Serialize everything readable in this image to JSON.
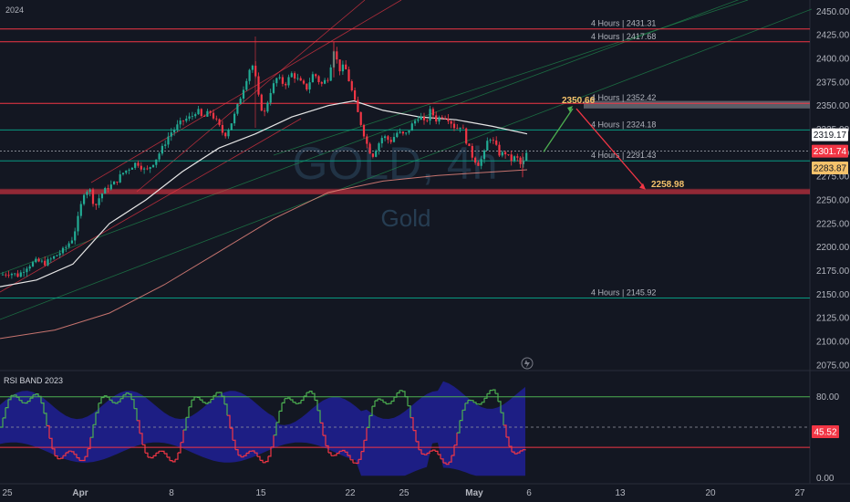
{
  "year_label": "2024",
  "watermark": {
    "symbol": "GOLD, 4h",
    "name": "Gold"
  },
  "chart_data": {
    "type": "candlestick",
    "ylim": [
      2070,
      2462
    ],
    "y_ticks": [
      2450,
      2425,
      2400,
      2375,
      2350,
      2325,
      2300,
      2275,
      2250,
      2225,
      2200,
      2175,
      2150,
      2125,
      2100,
      2075
    ],
    "x_ticks": [
      "25",
      "Apr",
      "8",
      "15",
      "22",
      "25",
      "May",
      "6",
      "13",
      "20",
      "27"
    ],
    "close_path": [
      [
        0,
        2170
      ],
      [
        10,
        2173
      ],
      [
        20,
        2170
      ],
      [
        30,
        2180
      ],
      [
        40,
        2185
      ],
      [
        50,
        2183
      ],
      [
        60,
        2190
      ],
      [
        70,
        2197
      ],
      [
        80,
        2210
      ],
      [
        86,
        2232
      ],
      [
        92,
        2258
      ],
      [
        98,
        2262
      ],
      [
        104,
        2242
      ],
      [
        110,
        2255
      ],
      [
        118,
        2263
      ],
      [
        126,
        2268
      ],
      [
        134,
        2278
      ],
      [
        142,
        2284
      ],
      [
        150,
        2290
      ],
      [
        160,
        2280
      ],
      [
        170,
        2292
      ],
      [
        178,
        2305
      ],
      [
        186,
        2320
      ],
      [
        194,
        2328
      ],
      [
        202,
        2335
      ],
      [
        210,
        2338
      ],
      [
        216,
        2346
      ],
      [
        222,
        2336
      ],
      [
        230,
        2344
      ],
      [
        238,
        2332
      ],
      [
        246,
        2318
      ],
      [
        252,
        2328
      ],
      [
        258,
        2342
      ],
      [
        264,
        2360
      ],
      [
        270,
        2378
      ],
      [
        276,
        2396
      ],
      [
        280,
        2380
      ],
      [
        285,
        2350
      ],
      [
        290,
        2342
      ],
      [
        296,
        2364
      ],
      [
        304,
        2380
      ],
      [
        312,
        2372
      ],
      [
        320,
        2384
      ],
      [
        328,
        2376
      ],
      [
        336,
        2368
      ],
      [
        344,
        2385
      ],
      [
        352,
        2372
      ],
      [
        360,
        2380
      ],
      [
        366,
        2410
      ],
      [
        372,
        2388
      ],
      [
        378,
        2392
      ],
      [
        384,
        2372
      ],
      [
        390,
        2350
      ],
      [
        396,
        2330
      ],
      [
        402,
        2310
      ],
      [
        408,
        2296
      ],
      [
        414,
        2308
      ],
      [
        420,
        2318
      ],
      [
        428,
        2312
      ],
      [
        436,
        2322
      ],
      [
        444,
        2318
      ],
      [
        452,
        2330
      ],
      [
        460,
        2340
      ],
      [
        466,
        2330
      ],
      [
        472,
        2345
      ],
      [
        478,
        2335
      ],
      [
        486,
        2340
      ],
      [
        492,
        2336
      ],
      [
        500,
        2325
      ],
      [
        506,
        2330
      ],
      [
        512,
        2310
      ],
      [
        518,
        2296
      ],
      [
        524,
        2288
      ],
      [
        530,
        2296
      ],
      [
        536,
        2318
      ],
      [
        542,
        2310
      ],
      [
        548,
        2298
      ],
      [
        554,
        2300
      ],
      [
        560,
        2292
      ],
      [
        566,
        2296
      ],
      [
        572,
        2285
      ],
      [
        578,
        2301
      ]
    ],
    "ema_white": [
      [
        0,
        2158
      ],
      [
        40,
        2165
      ],
      [
        80,
        2182
      ],
      [
        120,
        2225
      ],
      [
        160,
        2250
      ],
      [
        200,
        2280
      ],
      [
        240,
        2305
      ],
      [
        280,
        2320
      ],
      [
        320,
        2338
      ],
      [
        360,
        2350
      ],
      [
        388,
        2355
      ],
      [
        420,
        2345
      ],
      [
        460,
        2338
      ],
      [
        500,
        2335
      ],
      [
        540,
        2328
      ],
      [
        578,
        2320
      ]
    ],
    "ema_red": [
      [
        0,
        2103
      ],
      [
        60,
        2112
      ],
      [
        120,
        2130
      ],
      [
        180,
        2160
      ],
      [
        240,
        2195
      ],
      [
        300,
        2230
      ],
      [
        360,
        2258
      ],
      [
        420,
        2270
      ],
      [
        480,
        2276
      ],
      [
        578,
        2282
      ]
    ],
    "levels": [
      {
        "label": "4 Hours | 2431.31",
        "value": 2431.31,
        "color": "#f23645"
      },
      {
        "label": "4 Hours | 2417.68",
        "value": 2417.68,
        "color": "#f23645"
      },
      {
        "label": "4 Hours | 2352.42",
        "value": 2352.42,
        "color": "#f23645"
      },
      {
        "label": "4 Hours | 2324.18",
        "value": 2324.18,
        "color": "#089981"
      },
      {
        "label": "4 Hours | 2291.43",
        "value": 2291.43,
        "color": "#089981"
      },
      {
        "label": "4 Hours | 2145.92",
        "value": 2145.92,
        "color": "#089981"
      }
    ],
    "zones": [
      {
        "value": 2258.98,
        "color": "#f23645"
      },
      {
        "value": 2351,
        "color": "#9598a1"
      }
    ],
    "targets": {
      "up": {
        "label": "2350.66",
        "value": 2350.66,
        "color": "#f5c26b"
      },
      "down": {
        "label": "2258.98",
        "value": 2258.98,
        "color": "#f5c26b"
      }
    },
    "price_tags": [
      {
        "text": "2319.17",
        "value": 2319.17,
        "bg": "#ffffff",
        "fg": "#131722"
      },
      {
        "text": "2301.74",
        "value": 2301.74,
        "bg": "#f23645",
        "fg": "#ffffff"
      },
      {
        "text": "2283.87",
        "value": 2283.87,
        "bg": "#f5c26b",
        "fg": "#131722"
      }
    ]
  },
  "indicator": {
    "title": "RSI BAND 2023",
    "ylim": [
      -5,
      105
    ],
    "upper_line": 80,
    "mid_line": 50,
    "lower_line": 30,
    "value_tag": "45.52",
    "hidden_tag": "46.52",
    "tick_labels": [
      "80.00",
      "0.00"
    ],
    "tick_values": [
      80,
      0
    ]
  }
}
